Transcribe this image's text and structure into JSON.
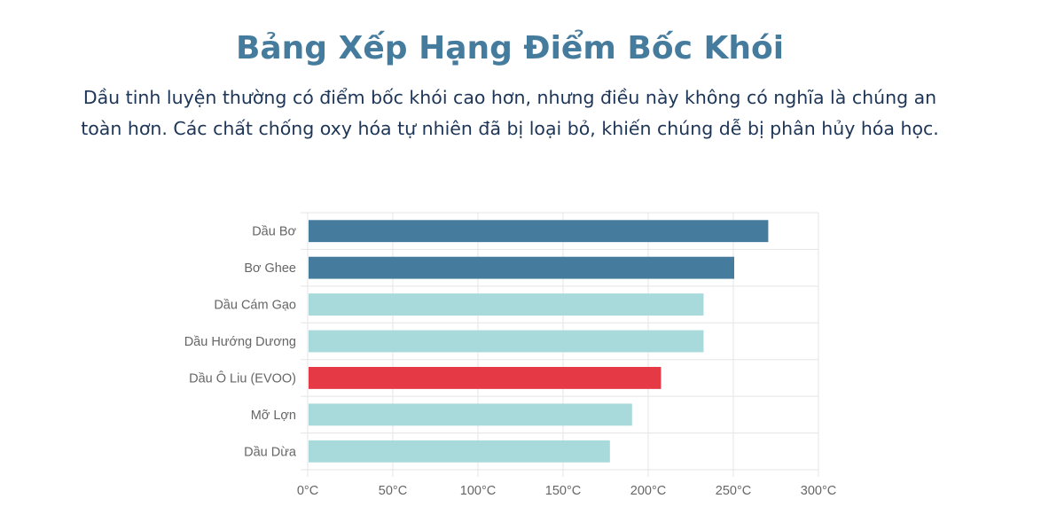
{
  "header": {
    "title": "Bảng Xếp Hạng Điểm Bốc Khói",
    "subtitle": "Dầu tinh luyện thường có điểm bốc khói cao hơn, nhưng điều này không có nghĩa là chúng an toàn hơn. Các chất chống oxy hóa tự nhiên đã bị loại bỏ, khiến chúng dễ bị phân hủy hóa học."
  },
  "chart_data": {
    "type": "bar",
    "orientation": "horizontal",
    "categories": [
      "Dầu Bơ",
      "Bơ Ghee",
      "Dầu Cám Gạo",
      "Dầu Hướng Dương",
      "Dầu Ô Liu (EVOO)",
      "Mỡ Lợn",
      "Dầu Dừa"
    ],
    "values": [
      270,
      250,
      232,
      232,
      207,
      190,
      177
    ],
    "bar_colors": [
      "#457b9d",
      "#457b9d",
      "#a8dadc",
      "#a8dadc",
      "#e63946",
      "#a8dadc",
      "#a8dadc"
    ],
    "xlim": [
      0,
      300
    ],
    "x_ticks": [
      0,
      50,
      100,
      150,
      200,
      250,
      300
    ],
    "x_tick_labels": [
      "0°C",
      "50°C",
      "100°C",
      "150°C",
      "200°C",
      "250°C",
      "300°C"
    ],
    "grid": true,
    "legend": "none"
  }
}
